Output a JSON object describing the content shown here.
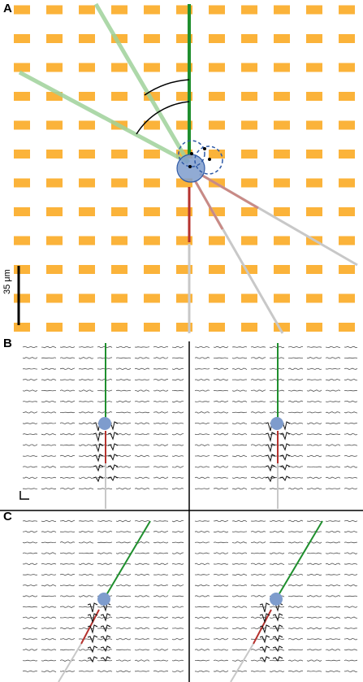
{
  "panels": {
    "a_label": "A",
    "b_label": "B",
    "c_label": "C"
  },
  "scalebar": {
    "label": "35 μm"
  },
  "colors": {
    "electrode_pad": "#fbb33a",
    "soma": "#7e9ccd",
    "soma_outline": "#2f5aa6",
    "dendrite_apical": "#1f8f2e",
    "dendrite_apical_faint": "#9fd19a",
    "dendrite_basal": "#b5322e",
    "dendrite_basal_faint": "#c98a86",
    "axon_faint": "#c8c8c8",
    "trace": "#555555",
    "trace_strong": "#111111",
    "angle_arc": "#000000"
  },
  "icons": {
    "soma": "filled-circle",
    "alternate_soma_positions": "dashed-circle",
    "angle_indicator": "arc"
  }
}
